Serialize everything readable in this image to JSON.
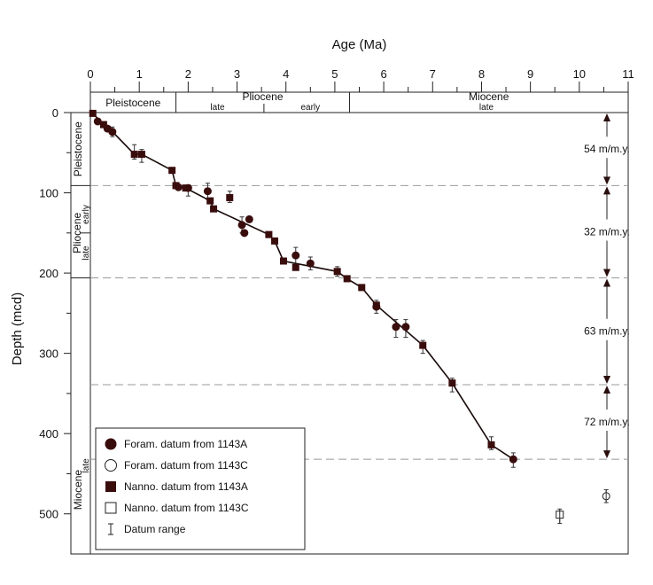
{
  "chart_data": {
    "type": "scatter",
    "xlabel": "Age (Ma)",
    "ylabel": "Depth (mcd)",
    "xlim": [
      0,
      11
    ],
    "ylim": [
      0,
      550
    ],
    "x_ticks": [
      0,
      1,
      2,
      3,
      4,
      5,
      6,
      7,
      8,
      9,
      10,
      11
    ],
    "y_ticks": [
      0,
      100,
      200,
      300,
      400,
      500
    ],
    "y_inverted": true,
    "grid": false,
    "legend_placement": "bottom-left",
    "top_epochs": [
      {
        "label": "Pleistocene",
        "from": 0,
        "to": 1.75
      },
      {
        "label": "Pliocene",
        "from": 1.75,
        "to": 5.3
      },
      {
        "label": "Miocene",
        "from": 5.3,
        "to": 11
      }
    ],
    "top_subepochs": [
      {
        "label": "late",
        "at": 2.6
      },
      {
        "label": "early",
        "at": 4.5
      },
      {
        "label": "late",
        "at": 8.1
      }
    ],
    "top_subepoch_boundary": 3.55,
    "left_epochs": [
      {
        "label": "Pleistocene",
        "from": 0,
        "to": 91
      },
      {
        "label": "Pliocene",
        "from": 91,
        "to": 206
      },
      {
        "label": "Miocene",
        "from": 206,
        "to": 550
      }
    ],
    "left_subepochs": [
      {
        "label": "early",
        "at": 127
      },
      {
        "label": "late",
        "at": 175
      },
      {
        "label": "late",
        "at": 440
      }
    ],
    "left_subepoch_boundary": 150,
    "boundaries_depth": [
      91,
      206,
      339,
      432
    ],
    "rates": [
      {
        "label": "54 m/m.y.",
        "from": 0,
        "to": 91
      },
      {
        "label": "32 m/m.y.",
        "from": 91,
        "to": 206
      },
      {
        "label": "63 m/m.y.",
        "from": 206,
        "to": 339
      },
      {
        "label": "72 m/m.y.",
        "from": 339,
        "to": 432
      }
    ],
    "line": {
      "x": [
        0.05,
        0.27,
        0.47,
        0.9,
        1.05,
        1.67,
        1.75,
        1.95,
        2.45,
        2.52,
        3.65,
        3.77,
        3.95,
        5.05,
        5.25,
        5.55,
        5.85,
        6.8,
        7.4,
        8.2,
        8.65
      ],
      "y": [
        1,
        15,
        25,
        52,
        52,
        72,
        91,
        94,
        110,
        120,
        152,
        160,
        185,
        198,
        207,
        218,
        240,
        290,
        337,
        414,
        432
      ]
    },
    "series": [
      {
        "name": "Foram. datum from 1143A",
        "marker": "filled-circle",
        "points": [
          {
            "x": 0.15,
            "y": 11
          },
          {
            "x": 0.35,
            "y": 20
          },
          {
            "x": 0.45,
            "y": 24
          },
          {
            "x": 1.8,
            "y": 93
          },
          {
            "x": 2.0,
            "y": 94
          },
          {
            "x": 2.4,
            "y": 98
          },
          {
            "x": 3.1,
            "y": 140
          },
          {
            "x": 3.15,
            "y": 150
          },
          {
            "x": 3.25,
            "y": 133
          },
          {
            "x": 4.2,
            "y": 178
          },
          {
            "x": 4.5,
            "y": 188
          },
          {
            "x": 5.85,
            "y": 242
          },
          {
            "x": 6.25,
            "y": 267
          },
          {
            "x": 6.45,
            "y": 267
          },
          {
            "x": 8.65,
            "y": 432
          }
        ]
      },
      {
        "name": "Foram. datum  from 1143C",
        "marker": "open-circle",
        "points": [
          {
            "x": 10.55,
            "y": 478
          }
        ]
      },
      {
        "name": "Nanno. datum from 1143A",
        "marker": "filled-square",
        "points": [
          {
            "x": 0.05,
            "y": 1
          },
          {
            "x": 0.27,
            "y": 15
          },
          {
            "x": 0.9,
            "y": 52
          },
          {
            "x": 1.05,
            "y": 52
          },
          {
            "x": 1.67,
            "y": 72
          },
          {
            "x": 1.75,
            "y": 91
          },
          {
            "x": 1.95,
            "y": 94
          },
          {
            "x": 2.45,
            "y": 110
          },
          {
            "x": 2.52,
            "y": 120
          },
          {
            "x": 2.85,
            "y": 106
          },
          {
            "x": 3.65,
            "y": 152
          },
          {
            "x": 3.77,
            "y": 160
          },
          {
            "x": 3.95,
            "y": 185
          },
          {
            "x": 4.2,
            "y": 193
          },
          {
            "x": 5.05,
            "y": 198
          },
          {
            "x": 5.25,
            "y": 207
          },
          {
            "x": 5.55,
            "y": 218
          },
          {
            "x": 5.85,
            "y": 240
          },
          {
            "x": 6.8,
            "y": 290
          },
          {
            "x": 7.4,
            "y": 337
          },
          {
            "x": 8.2,
            "y": 414
          }
        ]
      },
      {
        "name": "Nanno. datum from 1143C",
        "marker": "open-square",
        "points": [
          {
            "x": 9.6,
            "y": 501
          }
        ]
      }
    ],
    "range_legend": "Datum range",
    "ranges": [
      {
        "x": 0.45,
        "y1": 18,
        "y2": 30
      },
      {
        "x": 0.9,
        "y1": 40,
        "y2": 58
      },
      {
        "x": 1.05,
        "y1": 46,
        "y2": 62
      },
      {
        "x": 2.0,
        "y1": 90,
        "y2": 104
      },
      {
        "x": 2.4,
        "y1": 88,
        "y2": 108
      },
      {
        "x": 2.85,
        "y1": 98,
        "y2": 112
      },
      {
        "x": 3.1,
        "y1": 130,
        "y2": 150
      },
      {
        "x": 4.2,
        "y1": 168,
        "y2": 190
      },
      {
        "x": 4.5,
        "y1": 180,
        "y2": 196
      },
      {
        "x": 5.05,
        "y1": 192,
        "y2": 204
      },
      {
        "x": 5.85,
        "y1": 234,
        "y2": 250
      },
      {
        "x": 6.25,
        "y1": 258,
        "y2": 280
      },
      {
        "x": 6.45,
        "y1": 258,
        "y2": 280
      },
      {
        "x": 6.8,
        "y1": 284,
        "y2": 300
      },
      {
        "x": 7.4,
        "y1": 331,
        "y2": 348
      },
      {
        "x": 8.2,
        "y1": 404,
        "y2": 420
      },
      {
        "x": 8.65,
        "y1": 424,
        "y2": 442
      },
      {
        "x": 9.6,
        "y1": 494,
        "y2": 512
      },
      {
        "x": 10.55,
        "y1": 470,
        "y2": 486
      }
    ]
  }
}
